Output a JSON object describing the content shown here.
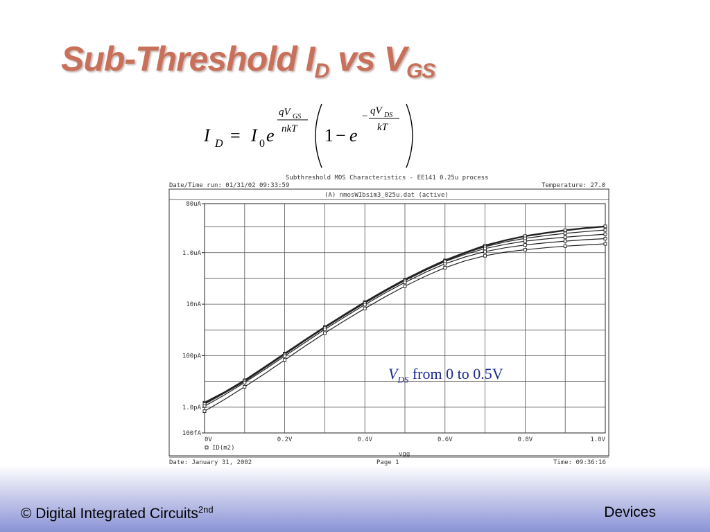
{
  "slide": {
    "title_main": "Sub-Threshold I",
    "title_sub1": "D",
    "title_mid": " vs V",
    "title_sub2": "GS"
  },
  "equation": {
    "lhs_symbol": "I",
    "lhs_sub": "D",
    "equals": "=",
    "i0_symbol": "I",
    "i0_sub": "0",
    "e1": "e",
    "exp1_num": "qV",
    "exp1_num_sub": "GS",
    "exp1_den": "nkT",
    "one": "1",
    "minus": "−",
    "e2": "e",
    "exp2_sign": "−",
    "exp2_num": "qV",
    "exp2_num_sub": "DS",
    "exp2_den": "kT"
  },
  "plot_header": {
    "title": "Subthreshold MOS Characteristics - EE141 0.25u process",
    "date_time": "Date/Time run: 01/31/02 09:33:59",
    "temperature": "Temperature: 27.0",
    "file": "(A) nmosWIbsim3_025u.dat (active)",
    "footer_date": "Date: January 31, 2002",
    "page": "Page 1",
    "time": "Time: 09:36:16",
    "legend_label": "ID(m2)"
  },
  "annotation": {
    "symbol": "V",
    "sub": "DS",
    "text": " from 0 to 0.5V",
    "color": "#1a2a8c"
  },
  "footer": {
    "left_text": "© Digital Integrated Circuits",
    "left_sup": "2nd",
    "right_text": "Devices"
  },
  "colors": {
    "title": "#c8705a",
    "footer_gradient_end": "#8a92d6"
  },
  "chart_data": {
    "type": "line",
    "title": "Subthreshold MOS Characteristics - EE141 0.25u process",
    "xlabel": "vgg",
    "ylabel": "",
    "xlim": [
      0,
      1.0
    ],
    "ylim": [
      1e-13,
      8e-05
    ],
    "yscale": "log",
    "x_ticks": [
      {
        "value": 0.0,
        "label": "0V"
      },
      {
        "value": 0.2,
        "label": "0.2V"
      },
      {
        "value": 0.4,
        "label": "0.4V"
      },
      {
        "value": 0.6,
        "label": "0.6V"
      },
      {
        "value": 0.8,
        "label": "0.8V"
      },
      {
        "value": 1.0,
        "label": "1.0V"
      }
    ],
    "y_ticks": [
      {
        "value": 8e-05,
        "label": "80uA"
      },
      {
        "value": 1e-06,
        "label": "1.0uA"
      },
      {
        "value": 1e-08,
        "label": "10nA"
      },
      {
        "value": 1e-10,
        "label": "100pA"
      },
      {
        "value": 1e-12,
        "label": "1.0pA"
      },
      {
        "value": 1e-13,
        "label": "100fA"
      }
    ],
    "grid": true,
    "legend": "bottom-left",
    "x": [
      0,
      0.05,
      0.1,
      0.15,
      0.2,
      0.25,
      0.3,
      0.35,
      0.4,
      0.45,
      0.5,
      0.55,
      0.6,
      0.65,
      0.7,
      0.75,
      0.8,
      0.85,
      0.9,
      0.95,
      1.0
    ],
    "series": [
      {
        "values": [
          1.5e-12,
          3.8e-12,
          1.1e-11,
          3.6e-11,
          1.2e-10,
          4e-10,
          1.3e-09,
          4e-09,
          1.2e-08,
          3.4e-08,
          9e-08,
          2.2e-07,
          5e-07,
          1e-06,
          1.9e-06,
          3e-06,
          4.4e-06,
          5.8e-06,
          7.4e-06,
          9e-06,
          1.05e-05
        ]
      },
      {
        "values": [
          1.4e-12,
          3.7e-12,
          1.1e-11,
          3.5e-11,
          1.15e-10,
          3.9e-10,
          1.25e-09,
          3.9e-09,
          1.15e-08,
          3.3e-08,
          8.7e-08,
          2.1e-07,
          4.8e-07,
          9.5e-07,
          1.7e-06,
          2.6e-06,
          3.6e-06,
          4.6e-06,
          5.6e-06,
          6.6e-06,
          7.6e-06
        ]
      },
      {
        "values": [
          1.3e-12,
          3.5e-12,
          1e-11,
          3.3e-11,
          1.1e-10,
          3.7e-10,
          1.2e-09,
          3.7e-09,
          1.1e-08,
          3.1e-08,
          8.2e-08,
          2e-07,
          4.5e-07,
          8.6e-07,
          1.45e-06,
          2.1e-06,
          2.8e-06,
          3.4e-06,
          4e-06,
          4.6e-06,
          5.2e-06
        ]
      },
      {
        "values": [
          1.1e-12,
          3e-12,
          9e-12,
          2.9e-11,
          9.6e-11,
          3.2e-10,
          1.05e-09,
          3.2e-09,
          9.5e-09,
          2.7e-08,
          7e-08,
          1.7e-07,
          3.7e-07,
          6.8e-07,
          1.1e-06,
          1.55e-06,
          2e-06,
          2.4e-06,
          2.8e-06,
          3.2e-06,
          3.5e-06
        ]
      },
      {
        "values": [
          7e-13,
          2e-12,
          6.2e-12,
          2e-11,
          6.8e-11,
          2.3e-10,
          7.5e-10,
          2.3e-09,
          6.8e-09,
          1.9e-08,
          5e-08,
          1.2e-07,
          2.6e-07,
          4.8e-07,
          7.6e-07,
          1.05e-06,
          1.3e-06,
          1.55e-06,
          1.8e-06,
          2e-06,
          2.2e-06
        ]
      }
    ]
  }
}
